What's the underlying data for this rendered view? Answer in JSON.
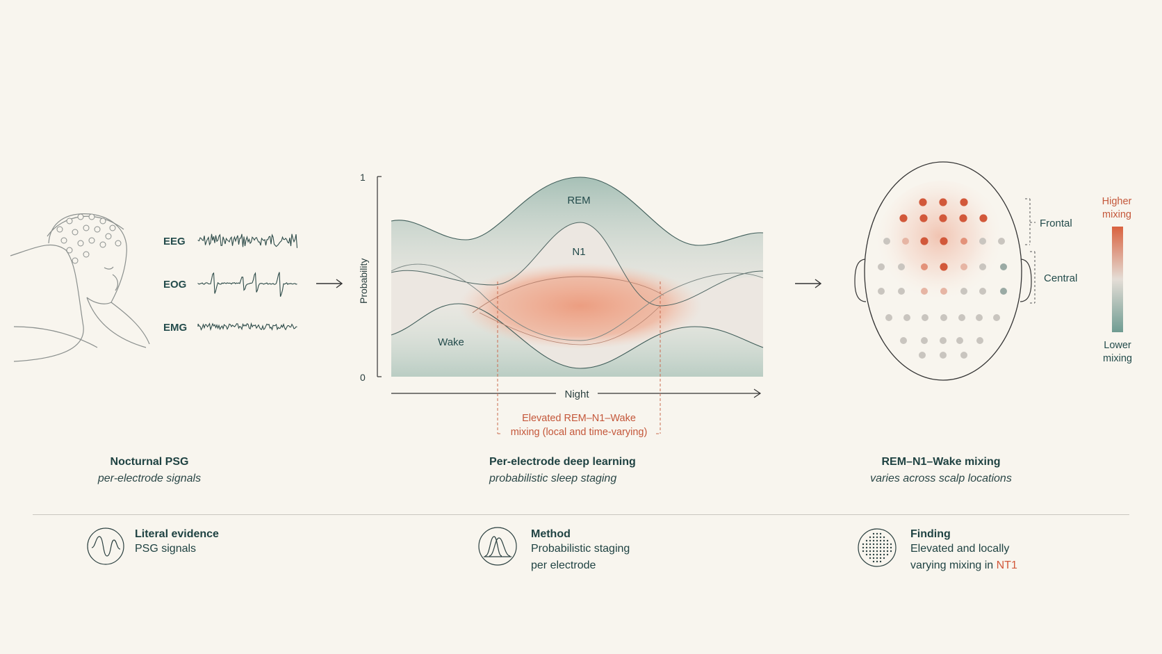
{
  "psg": {
    "signals": [
      {
        "label": "EEG"
      },
      {
        "label": "EOG"
      },
      {
        "label": "EMG"
      }
    ],
    "caption_title": "Nocturnal PSG",
    "caption_sub": "per-electrode signals"
  },
  "staging": {
    "y_label": "Probability",
    "y_max_label": "1",
    "y_min_label": "0",
    "x_label": "Night",
    "curves": [
      "REM",
      "N1",
      "Wake"
    ],
    "annotation_line1": "Elevated REM–N1–Wake",
    "annotation_line2": "mixing (local and time-varying)",
    "caption_title": "Per-electrode deep learning",
    "caption_sub": "probabilistic sleep staging"
  },
  "scalp": {
    "regions": [
      "Frontal",
      "Central"
    ],
    "scale_high": [
      "Higher",
      "mixing"
    ],
    "scale_low": [
      "Lower",
      "mixing"
    ],
    "caption_title": "REM–N1–Wake mixing",
    "caption_sub": "varies across scalp locations",
    "colors": {
      "high": "#d2583a",
      "low": "#6f9e93",
      "neutral": "#c5c2bd"
    }
  },
  "legend": [
    {
      "icon": "wave-icon",
      "title": "Literal evidence",
      "lines": [
        "PSG signals"
      ]
    },
    {
      "icon": "distribution-icon",
      "title": "Method",
      "lines": [
        "Probabilistic staging",
        "per electrode"
      ]
    },
    {
      "icon": "dot-grid-icon",
      "title": "Finding",
      "lines": [
        "Elevated and locally",
        "varying mixing in "
      ],
      "highlight": "NT1"
    }
  ]
}
